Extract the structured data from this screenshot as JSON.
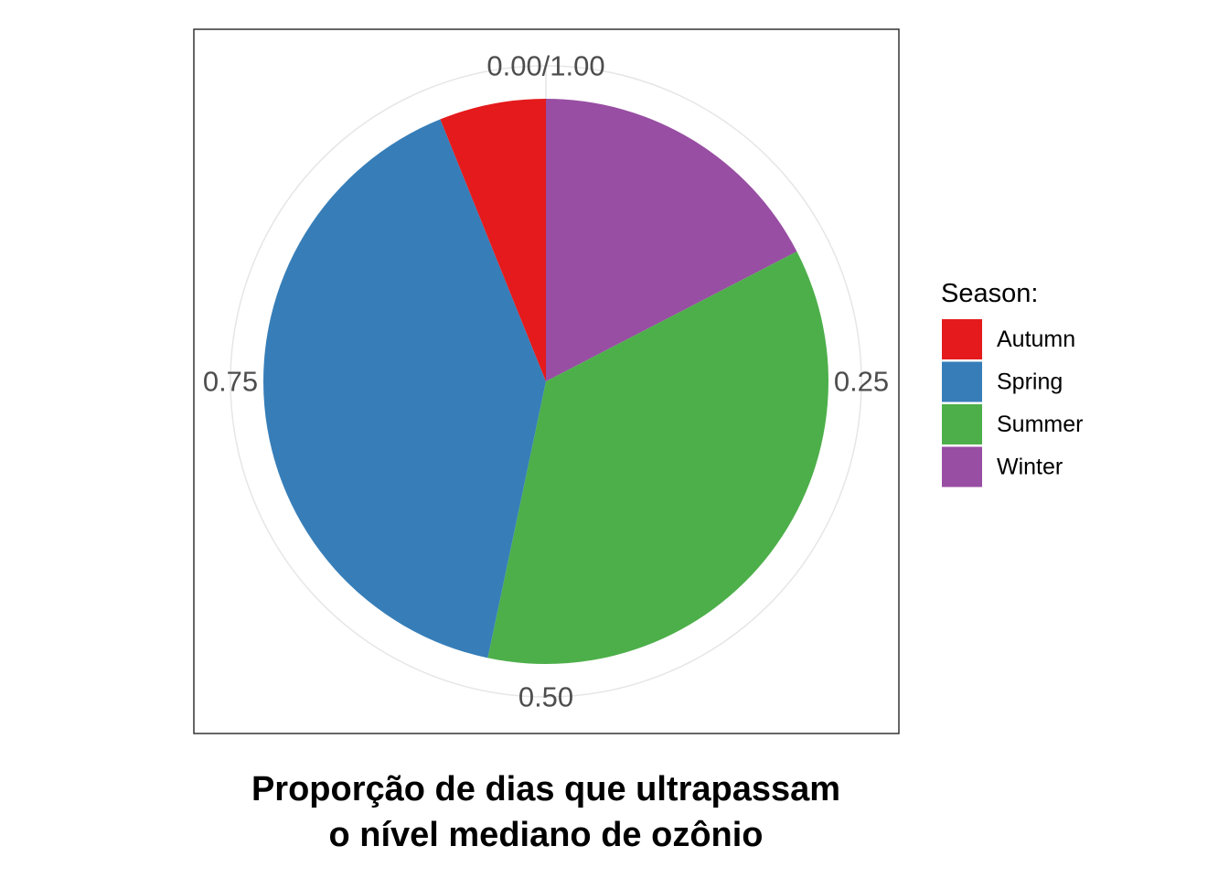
{
  "chart_data": {
    "type": "pie",
    "caption_lines": [
      "Proporção de dias que ultrapassam",
      "o nível mediano de ozônio"
    ],
    "theta_ticks": [
      {
        "value": 0,
        "label": "0.00/1.00"
      },
      {
        "value": 0.25,
        "label": "0.25"
      },
      {
        "value": 0.5,
        "label": "0.50"
      },
      {
        "value": 0.75,
        "label": "0.75"
      }
    ],
    "legend_title": "Season:",
    "legend_position": "right",
    "grid": true,
    "slices": [
      {
        "label": "Winter",
        "value": 0.174,
        "color": "#984EA3"
      },
      {
        "label": "Summer",
        "value": 0.359,
        "color": "#4DAF4A"
      },
      {
        "label": "Spring",
        "value": 0.406,
        "color": "#377EB8"
      },
      {
        "label": "Autumn",
        "value": 0.061,
        "color": "#E41A1C"
      }
    ],
    "legend_order": [
      "Autumn",
      "Spring",
      "Summer",
      "Winter"
    ]
  }
}
